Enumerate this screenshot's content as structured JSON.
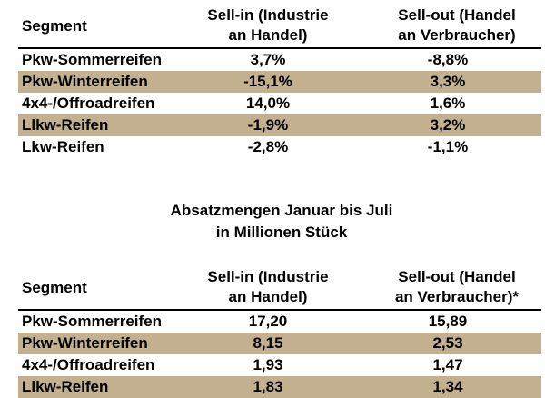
{
  "table1": {
    "header": {
      "segment": "Segment",
      "sellin_line1": "Sell-in (Industrie",
      "sellin_line2": "an Handel)",
      "sellout_line1": "Sell-out (Handel",
      "sellout_line2": "an Verbraucher)"
    },
    "rows": [
      {
        "segment": "Pkw-Sommerreifen",
        "sellin": "3,7%",
        "sellout": "-8,8%",
        "shaded": false
      },
      {
        "segment": "Pkw-Winterreifen",
        "sellin": "-15,1%",
        "sellout": "3,3%",
        "shaded": true
      },
      {
        "segment": "4x4-/Offroadreifen",
        "sellin": "14,0%",
        "sellout": "1,6%",
        "shaded": false
      },
      {
        "segment": "Llkw-Reifen",
        "sellin": "-1,9%",
        "sellout": "3,2%",
        "shaded": true
      },
      {
        "segment": "Lkw-Reifen",
        "sellin": "-2,8%",
        "sellout": "-1,1%",
        "shaded": false
      }
    ]
  },
  "caption": {
    "line1": "Absatzmengen Januar bis Juli",
    "line2": "in Millionen Stück"
  },
  "table2": {
    "header": {
      "segment": "Segment",
      "sellin_line1": "Sell-in (Industrie",
      "sellin_line2": "an Handel)",
      "sellout_line1": "Sell-out (Handel",
      "sellout_line2": "an Verbraucher)*"
    },
    "rows": [
      {
        "segment": "Pkw-Sommerreifen",
        "sellin": "17,20",
        "sellout": "15,89",
        "shaded": false
      },
      {
        "segment": "Pkw-Winterreifen",
        "sellin": "8,15",
        "sellout": "2,53",
        "shaded": true
      },
      {
        "segment": "4x4-/Offroadreifen",
        "sellin": "1,93",
        "sellout": "1,47",
        "shaded": false
      },
      {
        "segment": "Llkw-Reifen",
        "sellin": "1,83",
        "sellout": "1,34",
        "shaded": true
      }
    ]
  }
}
